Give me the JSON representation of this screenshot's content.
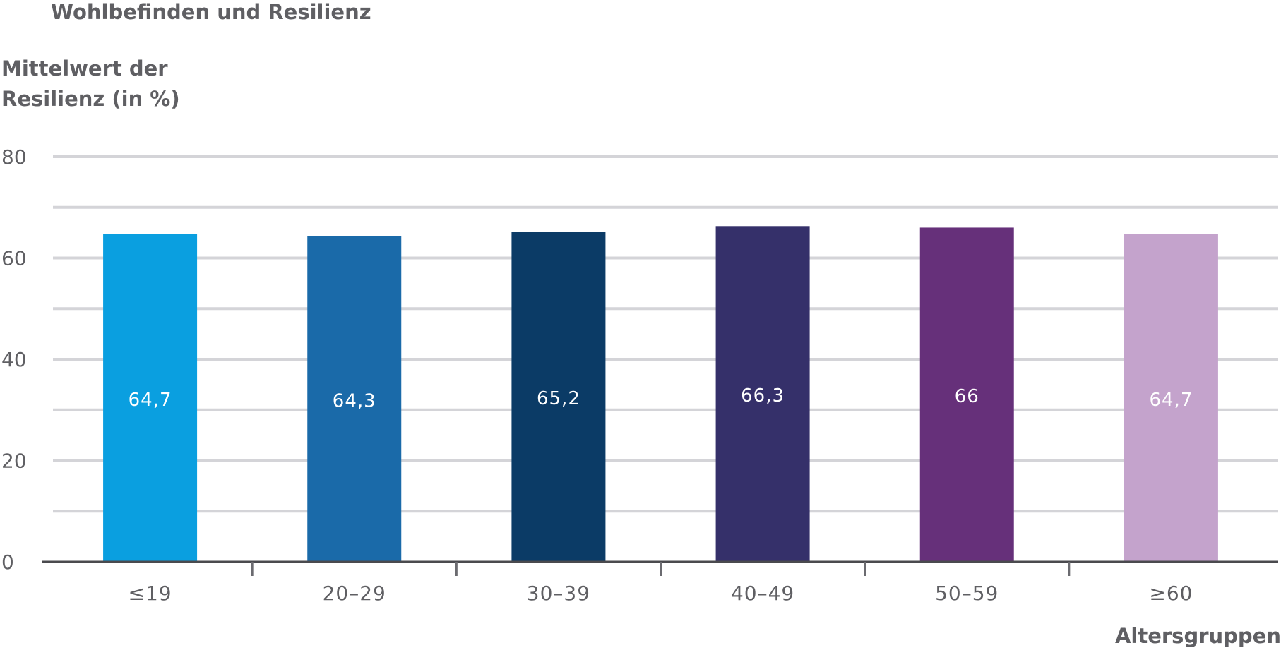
{
  "chart_data": {
    "type": "bar",
    "title": "Wohlbefinden und Resilienz",
    "ylabel": "Mittelwert der Resilienz (in %)",
    "xlabel": "Altersgruppen",
    "categories": [
      "≤19",
      "20–29",
      "30–39",
      "40–49",
      "50–59",
      "≥60"
    ],
    "values": [
      64.7,
      64.3,
      65.2,
      66.3,
      66,
      64.7
    ],
    "value_labels": [
      "64,7",
      "64,3",
      "65,2",
      "66,3",
      "66",
      "64,7"
    ],
    "colors": [
      "#0a9fe0",
      "#1a6aa9",
      "#0b3b66",
      "#35306a",
      "#66307a",
      "#c4a3cc"
    ],
    "ylim": [
      0,
      80
    ],
    "yticks": [
      "0",
      "20",
      "40",
      "60",
      "80"
    ],
    "grid": true
  }
}
